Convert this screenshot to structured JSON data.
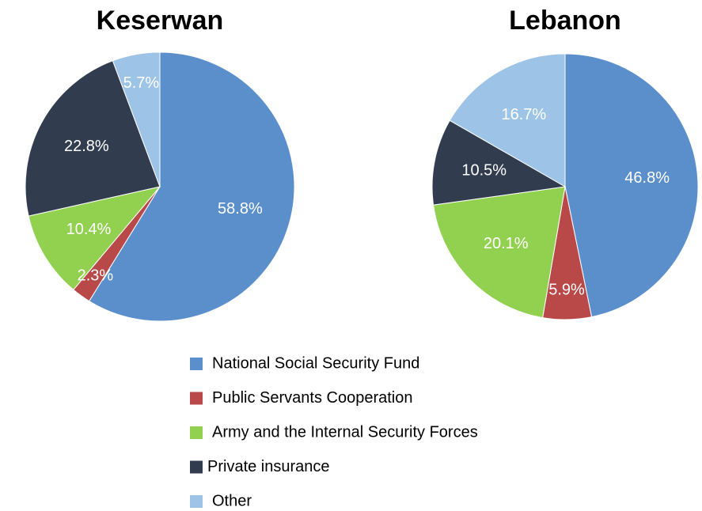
{
  "chart_data": [
    {
      "type": "pie",
      "title": "Keserwan",
      "categories": [
        "National Social Security Fund",
        "Public Servants Cooperation",
        "Army and the Internal Security Forces",
        "Private insurance",
        "Other"
      ],
      "colors": [
        "#5b8fcc",
        "#b94848",
        "#92d050",
        "#323c4f",
        "#9dc3e6"
      ],
      "values": [
        58.8,
        2.3,
        10.4,
        22.8,
        5.7
      ],
      "value_labels": [
        "58.8%",
        "2.3%",
        "10.4%",
        "22.8%",
        "5.7%"
      ]
    },
    {
      "type": "pie",
      "title": "Lebanon",
      "values": [
        46.8,
        5.9,
        20.1,
        10.5,
        16.7
      ],
      "value_labels": [
        "46.8%",
        "5.9%",
        "20.1%",
        "10.5%",
        "16.7%"
      ]
    }
  ]
}
